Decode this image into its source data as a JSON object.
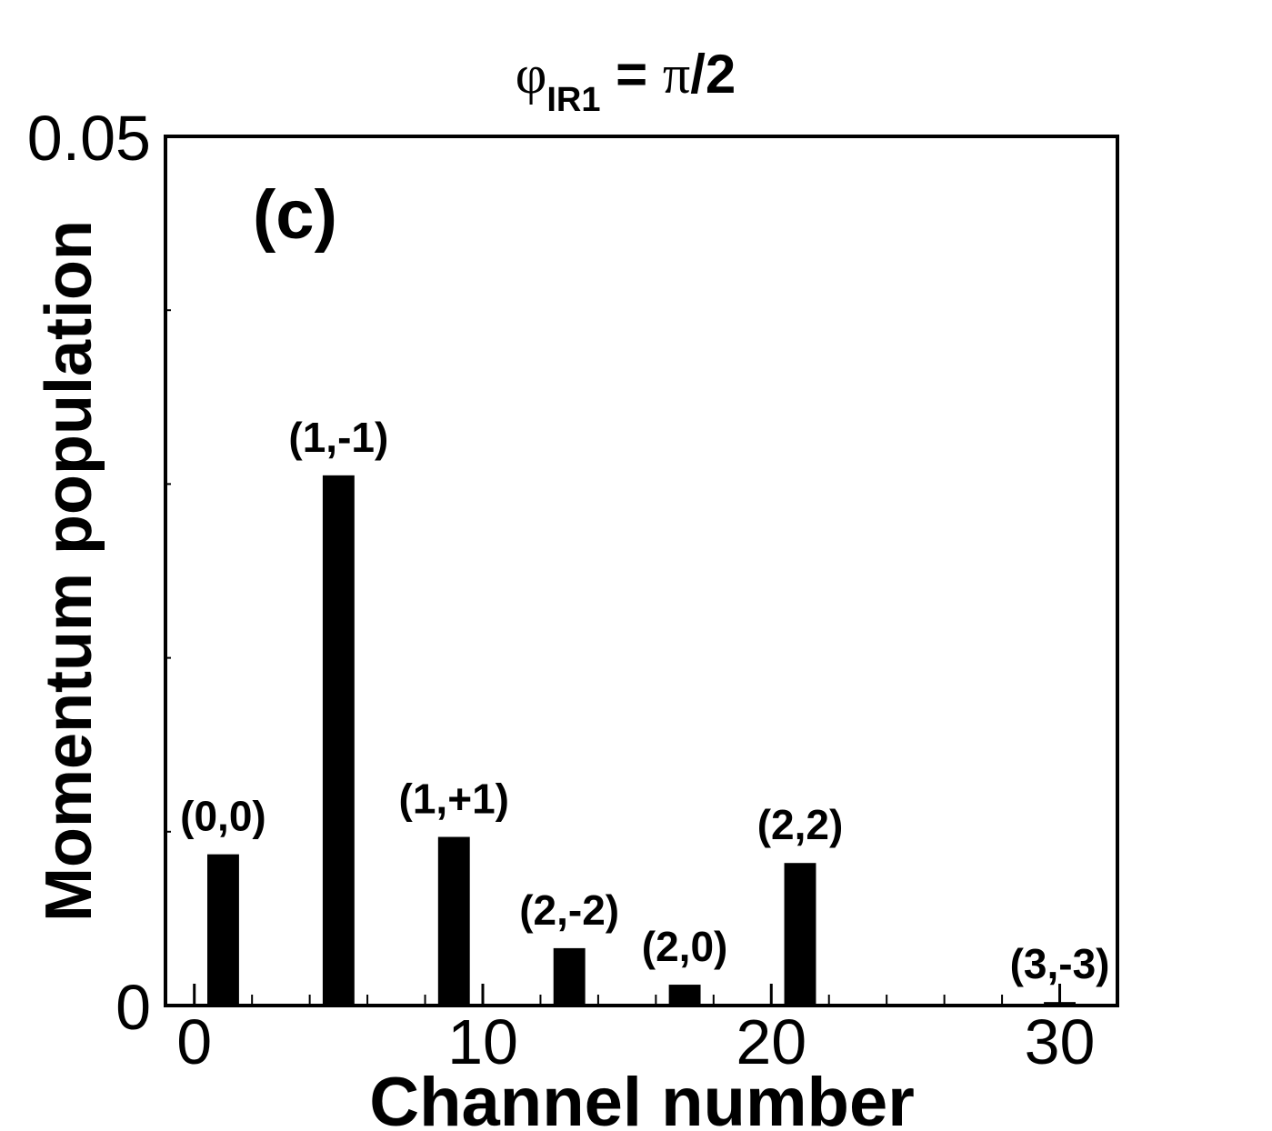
{
  "chart_data": {
    "type": "bar",
    "title": {
      "symbol": "φ",
      "subscript": "IR1",
      "rest": " = ",
      "pi": "π",
      "tail": "/2"
    },
    "panel_label": "(c)",
    "xlabel": "Channel number",
    "ylabel": "Momentum population",
    "xlim": [
      -1,
      32
    ],
    "ylim": [
      0,
      0.05
    ],
    "x_ticks": [
      0,
      10,
      20,
      30
    ],
    "x_tick_labels": [
      "0",
      "10",
      "20",
      "30"
    ],
    "y_ticks": [
      0,
      0.05
    ],
    "y_tick_labels": [
      "0",
      "0.05"
    ],
    "grid": false,
    "bar_width": 1.1,
    "bars": [
      {
        "x": 1,
        "value": 0.0087,
        "label": "(0,0)"
      },
      {
        "x": 5,
        "value": 0.0305,
        "label": "(1,-1)"
      },
      {
        "x": 9,
        "value": 0.0097,
        "label": "(1,+1)"
      },
      {
        "x": 13,
        "value": 0.0033,
        "label": "(2,-2)"
      },
      {
        "x": 17,
        "value": 0.0012,
        "label": "(2,0)"
      },
      {
        "x": 21,
        "value": 0.0082,
        "label": "(2,2)"
      },
      {
        "x": 30,
        "value": 0.0002,
        "label": "(3,-3)"
      }
    ]
  }
}
